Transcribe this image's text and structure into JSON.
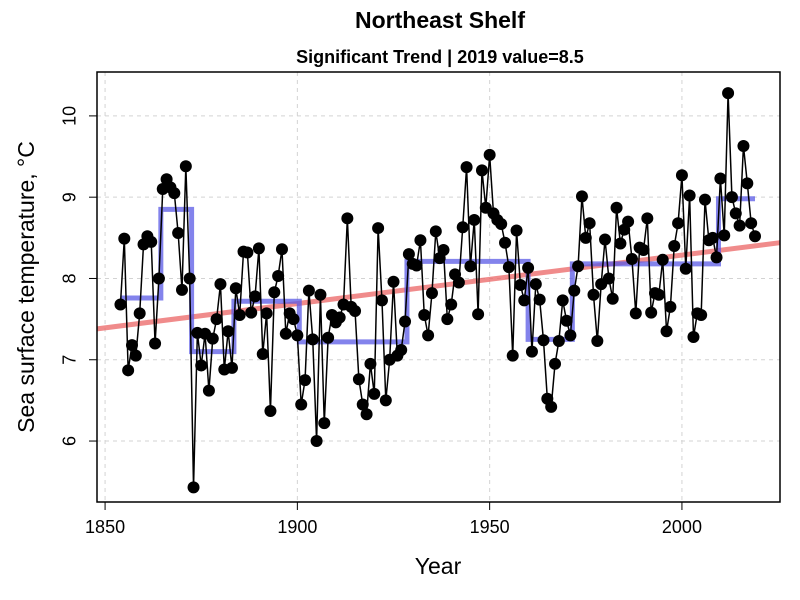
{
  "chart_data": {
    "type": "line",
    "title": "Northeast Shelf",
    "subtitle": "Significant Trend | 2019 value=8.5",
    "x_label": "Year",
    "y_label": "Sea surface temperature, °C",
    "xlim": [
      1847.9,
      2025.5
    ],
    "ylim": [
      5.25,
      10.54
    ],
    "xticks": [
      1850,
      1900,
      1950,
      2000
    ],
    "yticks": [
      6,
      7,
      8,
      9,
      10
    ],
    "grid": true,
    "series": [
      {
        "color": "#000000",
        "markers": true,
        "x": [
          1854,
          1855,
          1856,
          1857,
          1858,
          1859,
          1860,
          1861,
          1862,
          1863,
          1864,
          1865,
          1866,
          1867,
          1868,
          1869,
          1870,
          1871,
          1872,
          1873,
          1874,
          1875,
          1876,
          1877,
          1878,
          1879,
          1880,
          1881,
          1882,
          1883,
          1884,
          1885,
          1886,
          1887,
          1888,
          1889,
          1890,
          1891,
          1892,
          1893,
          1894,
          1895,
          1896,
          1897,
          1898,
          1899,
          1900,
          1901,
          1902,
          1903,
          1904,
          1905,
          1906,
          1907,
          1908,
          1909,
          1910,
          1911,
          1912,
          1913,
          1914,
          1915,
          1916,
          1917,
          1918,
          1919,
          1920,
          1921,
          1922,
          1923,
          1924,
          1925,
          1926,
          1927,
          1928,
          1929,
          1930,
          1931,
          1932,
          1933,
          1934,
          1935,
          1936,
          1937,
          1938,
          1939,
          1940,
          1941,
          1942,
          1943,
          1944,
          1945,
          1946,
          1947,
          1948,
          1949,
          1950,
          1951,
          1952,
          1953,
          1954,
          1955,
          1956,
          1957,
          1958,
          1959,
          1960,
          1961,
          1962,
          1963,
          1964,
          1965,
          1966,
          1967,
          1968,
          1969,
          1970,
          1971,
          1972,
          1973,
          1974,
          1975,
          1976,
          1977,
          1978,
          1979,
          1980,
          1981,
          1982,
          1983,
          1984,
          1985,
          1986,
          1987,
          1988,
          1989,
          1990,
          1991,
          1992,
          1993,
          1994,
          1995,
          1996,
          1997,
          1998,
          1999,
          2000,
          2001,
          2002,
          2003,
          2004,
          2005,
          2006,
          2007,
          2008,
          2009,
          2010,
          2011,
          2012,
          2013,
          2014,
          2015,
          2016,
          2017,
          2018,
          2019
        ],
        "values": [
          7.68,
          8.49,
          6.87,
          7.18,
          7.05,
          7.57,
          8.42,
          8.52,
          8.45,
          7.2,
          8.0,
          9.1,
          9.22,
          9.12,
          9.05,
          8.56,
          7.86,
          9.38,
          8.0,
          5.43,
          7.33,
          6.93,
          7.32,
          6.62,
          7.26,
          7.5,
          7.93,
          6.88,
          7.35,
          6.9,
          7.88,
          7.55,
          8.33,
          8.32,
          7.58,
          7.78,
          8.37,
          7.07,
          7.57,
          6.37,
          7.83,
          8.03,
          8.36,
          7.32,
          7.57,
          7.5,
          7.3,
          6.45,
          6.75,
          7.85,
          7.25,
          6.0,
          7.8,
          6.22,
          7.27,
          7.55,
          7.46,
          7.52,
          7.68,
          8.74,
          7.65,
          7.6,
          6.76,
          6.45,
          6.33,
          6.95,
          6.58,
          8.62,
          7.73,
          6.5,
          7.0,
          7.96,
          7.05,
          7.12,
          7.47,
          8.3,
          8.18,
          8.16,
          8.47,
          7.55,
          7.3,
          7.82,
          8.58,
          8.25,
          8.35,
          7.5,
          7.68,
          8.05,
          7.95,
          8.63,
          9.37,
          8.15,
          8.72,
          7.56,
          9.33,
          8.87,
          9.52,
          8.8,
          8.72,
          8.67,
          8.44,
          8.14,
          7.05,
          8.59,
          7.92,
          7.73,
          8.13,
          7.1,
          7.93,
          7.74,
          7.24,
          6.52,
          6.42,
          6.95,
          7.23,
          7.73,
          7.48,
          7.3,
          7.85,
          8.15,
          9.01,
          8.5,
          8.68,
          7.8,
          7.23,
          7.93,
          8.48,
          8.0,
          7.75,
          8.87,
          8.43,
          8.6,
          8.7,
          8.24,
          7.57,
          8.38,
          8.35,
          8.74,
          7.58,
          7.82,
          7.8,
          8.23,
          7.35,
          7.65,
          8.4,
          8.68,
          9.27,
          8.12,
          9.02,
          7.28,
          7.57,
          7.55,
          8.97,
          8.47,
          8.5,
          8.26,
          9.23,
          8.53,
          10.28,
          9.0,
          8.8,
          8.65,
          9.63,
          9.17,
          8.68,
          8.52
        ]
      },
      {
        "color": "rgba(90,90,230,0.75)",
        "markers": false,
        "x": [
          1854,
          1864.5,
          1864.5,
          1872.5,
          1872.5,
          1883.5,
          1883.5,
          1900.5,
          1900.5,
          1928.5,
          1928.5,
          1960,
          1960,
          1971.5,
          1971.5,
          2009.5,
          2009.5,
          2019
        ],
        "values": [
          7.76,
          7.76,
          8.85,
          8.85,
          7.1,
          7.1,
          7.72,
          7.72,
          7.22,
          7.22,
          8.21,
          8.21,
          7.25,
          7.25,
          8.18,
          8.18,
          8.98,
          8.98
        ]
      },
      {
        "color": "rgba(235,100,100,0.75)",
        "markers": false,
        "x": [
          1847.9,
          2025.5
        ],
        "values": [
          7.38,
          8.44
        ]
      }
    ]
  }
}
